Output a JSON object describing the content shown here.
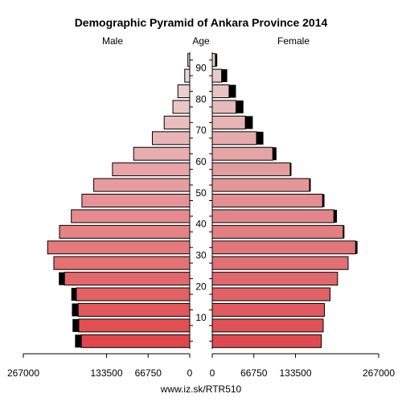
{
  "chart_data": {
    "type": "bar",
    "title": "Demographic Pyramid of Ankara Province 2014",
    "left_label": "Male",
    "center_label": "Age",
    "right_label": "Female",
    "source": "www.iz.sk/RTR510",
    "x_max": 267000,
    "x_ticks_left": [
      "267000",
      "133500",
      "66750",
      "0"
    ],
    "x_ticks_right": [
      "0",
      "66750",
      "133500",
      "267000"
    ],
    "x_tick_values": [
      267000,
      133500,
      66750,
      0
    ],
    "y_ticks": [
      10,
      20,
      30,
      40,
      50,
      60,
      70,
      80,
      90
    ],
    "age_groups": [
      "0-4",
      "5-9",
      "10-14",
      "15-19",
      "20-24",
      "25-29",
      "30-34",
      "35-39",
      "40-44",
      "45-49",
      "50-54",
      "55-59",
      "60-64",
      "65-69",
      "70-74",
      "75-79",
      "80-84",
      "85-89",
      "90+"
    ],
    "series": [
      {
        "name": "Male",
        "values": [
          174000,
          178000,
          179000,
          182000,
          201000,
          218000,
          228000,
          209000,
          190000,
          173000,
          154000,
          124000,
          90000,
          60000,
          41000,
          27000,
          19000,
          8000,
          3000
        ],
        "excess": [
          10000,
          10000,
          10000,
          8000,
          9000,
          0,
          0,
          0,
          0,
          0,
          0,
          0,
          0,
          0,
          0,
          0,
          0,
          0,
          0
        ]
      },
      {
        "name": "Female",
        "values": [
          175000,
          178000,
          180000,
          189000,
          201000,
          218000,
          230000,
          210000,
          195000,
          177000,
          156000,
          125000,
          97000,
          71000,
          53000,
          38000,
          27000,
          15000,
          5000
        ],
        "excess": [
          0,
          0,
          0,
          0,
          0,
          0,
          0,
          0,
          0,
          0,
          0,
          0,
          0,
          0,
          0,
          0,
          0,
          0,
          0
        ]
      }
    ],
    "female_excess": [
      0,
      0,
      0,
      0,
      0,
      0,
      3000,
      2000,
      5000,
      3000,
      2000,
      2000,
      6000,
      11000,
      12000,
      12000,
      11000,
      9000,
      3000
    ]
  }
}
